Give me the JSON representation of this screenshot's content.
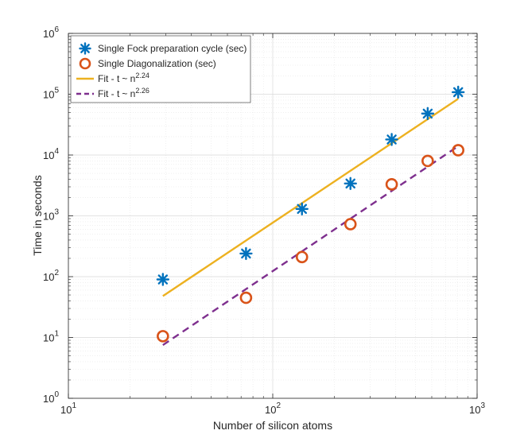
{
  "chart_data": {
    "type": "scatter",
    "xscale": "log",
    "yscale": "log",
    "xlim": [
      10,
      1000
    ],
    "ylim": [
      1,
      1000000
    ],
    "xlabel": "Number of silicon atoms",
    "ylabel": "Time in seconds",
    "grid": true,
    "minor_grid": true,
    "legend_position": "top-left",
    "x_ticks": [
      {
        "value": 10,
        "base": "10",
        "exp": "1"
      },
      {
        "value": 100,
        "base": "10",
        "exp": "2"
      },
      {
        "value": 1000,
        "base": "10",
        "exp": "3"
      }
    ],
    "y_ticks": [
      {
        "value": 1,
        "base": "10",
        "exp": "0"
      },
      {
        "value": 10,
        "base": "10",
        "exp": "1"
      },
      {
        "value": 100,
        "base": "10",
        "exp": "2"
      },
      {
        "value": 1000,
        "base": "10",
        "exp": "3"
      },
      {
        "value": 10000,
        "base": "10",
        "exp": "4"
      },
      {
        "value": 100000,
        "base": "10",
        "exp": "5"
      },
      {
        "value": 1000000,
        "base": "10",
        "exp": "6"
      }
    ],
    "series": [
      {
        "name": "Single Fock preparation cycle (sec)",
        "kind": "marker-asterisk",
        "color": "#0072BD",
        "x": [
          29,
          74,
          139,
          240,
          382,
          573,
          808
        ],
        "y": [
          90,
          240,
          1300,
          3400,
          18000,
          48000,
          108000
        ]
      },
      {
        "name": "Single Diagonalization (sec)",
        "kind": "marker-circle",
        "color": "#D95319",
        "x": [
          29,
          74,
          139,
          240,
          382,
          573,
          808
        ],
        "y": [
          10.5,
          45,
          210,
          730,
          3300,
          8000,
          12000
        ]
      },
      {
        "name": "Fit - t",
        "legend_sym": "~ n",
        "legend_exp": "2.24",
        "kind": "line-solid",
        "color": "#EDB120",
        "x": [
          29,
          808
        ],
        "y": [
          48,
          84000
        ]
      },
      {
        "name": "Fit - t",
        "legend_sym": "~ n",
        "legend_exp": "2.26",
        "kind": "line-dashed",
        "color": "#7E2F8E",
        "x": [
          29,
          808
        ],
        "y": [
          7.5,
          14000
        ]
      }
    ]
  }
}
